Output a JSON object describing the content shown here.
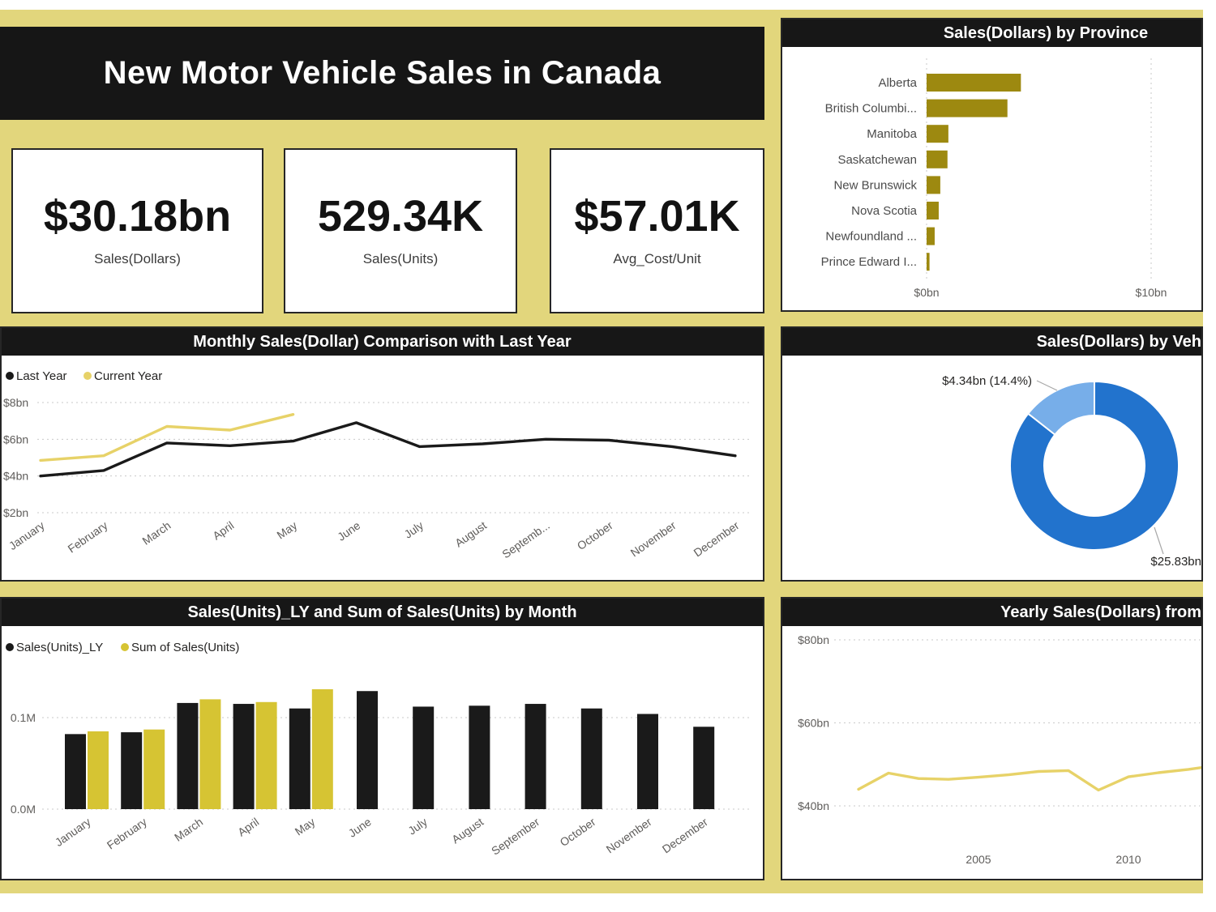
{
  "header": {
    "title": "New Motor Vehicle Sales in Canada"
  },
  "kpis": [
    {
      "value": "$30.18bn",
      "label": "Sales(Dollars)"
    },
    {
      "value": "529.34K",
      "label": "Sales(Units)"
    },
    {
      "value": "$57.01K",
      "label": "Avg_Cost/Unit"
    }
  ],
  "colors": {
    "background": "#e2d67c",
    "panel_border": "#262626",
    "title_bar": "#171717",
    "black_series": "#1a1a1a",
    "gold_line": "#e7d268",
    "gold_bar": "#d6c433",
    "olive_bar": "#9d8910",
    "donut_dark": "#2273cd",
    "donut_light": "#77aee9",
    "axis_text": "#5f5d5b",
    "cat_text": "#4b4b4b",
    "legend_text": "#252423",
    "grid": "#c9c9c9",
    "callout": "#a8a8a8"
  },
  "chart_data": [
    {
      "id": "province",
      "type": "hbar",
      "title": "Sales(Dollars) by Province",
      "categories": [
        "Alberta",
        "British Columbi...",
        "Manitoba",
        "Saskatchewan",
        "New Brunswick",
        "Nova Scotia",
        "Newfoundland ...",
        "Prince Edward I..."
      ],
      "values": [
        4.2,
        3.6,
        0.97,
        0.93,
        0.61,
        0.54,
        0.36,
        0.13
      ],
      "xlim": [
        0,
        10
      ],
      "x_ticks": [
        {
          "label": "$0bn",
          "value": 0
        },
        {
          "label": "$10bn",
          "value": 10
        }
      ],
      "bar_color_key": "olive_bar",
      "ylabel": "",
      "xlabel": ""
    },
    {
      "id": "monthly",
      "type": "line",
      "title": "Monthly Sales(Dollar) Comparison with Last Year",
      "categories": [
        "January",
        "February",
        "March",
        "April",
        "May",
        "June",
        "July",
        "August",
        "Septemb...",
        "October",
        "November",
        "December"
      ],
      "series": [
        {
          "name": "Last Year",
          "color_key": "black_series",
          "values": [
            4.0,
            4.3,
            5.8,
            5.65,
            5.9,
            6.9,
            5.6,
            5.75,
            6.0,
            5.95,
            5.6,
            5.1
          ]
        },
        {
          "name": "Current Year",
          "color_key": "gold_line",
          "values": [
            4.85,
            5.1,
            6.7,
            6.5,
            7.35,
            null,
            null,
            null,
            null,
            null,
            null,
            null
          ]
        }
      ],
      "ylim": [
        2,
        8
      ],
      "y_ticks": [
        {
          "label": "$8bn",
          "value": 8
        },
        {
          "label": "$6bn",
          "value": 6
        },
        {
          "label": "$4bn",
          "value": 4
        },
        {
          "label": "$2bn",
          "value": 2
        }
      ],
      "legend_position": "top-left",
      "grid": true
    },
    {
      "id": "vehicle",
      "type": "donut",
      "title": "Sales(Dollars) by Veh",
      "slices": [
        {
          "label": "$25.83bn",
          "value": 25.83,
          "color_key": "donut_dark"
        },
        {
          "label": "$4.34bn (14.4%)",
          "value": 4.34,
          "color_key": "donut_light"
        }
      ]
    },
    {
      "id": "units",
      "type": "grouped_bar",
      "title": "Sales(Units)_LY and Sum of Sales(Units) by Month",
      "categories": [
        "January",
        "February",
        "March",
        "April",
        "May",
        "June",
        "July",
        "August",
        "September",
        "October",
        "November",
        "December"
      ],
      "series": [
        {
          "name": "Sales(Units)_LY",
          "color_key": "black_series",
          "values": [
            0.082,
            0.084,
            0.116,
            0.115,
            0.11,
            0.129,
            0.112,
            0.113,
            0.115,
            0.11,
            0.104,
            0.09
          ]
        },
        {
          "name": "Sum of Sales(Units)",
          "color_key": "gold_bar",
          "values": [
            0.085,
            0.087,
            0.12,
            0.117,
            0.131,
            null,
            null,
            null,
            null,
            null,
            null,
            null
          ]
        }
      ],
      "ylim": [
        0,
        0.14
      ],
      "y_ticks": [
        {
          "label": "0.1M",
          "value": 0.1
        },
        {
          "label": "0.0M",
          "value": 0
        }
      ],
      "legend_position": "top-left",
      "grid": true
    },
    {
      "id": "yearly",
      "type": "line",
      "title": "Yearly Sales(Dollars) from",
      "x": [
        2001,
        2002,
        2003,
        2004,
        2005,
        2006,
        2007,
        2008,
        2009,
        2010,
        2011,
        2012,
        2013
      ],
      "series": [
        {
          "name": "Sales(Dollars)",
          "color_key": "gold_line",
          "values": [
            44.0,
            47.9,
            46.6,
            46.4,
            46.9,
            47.5,
            48.3,
            48.5,
            43.8,
            47.0,
            48.0,
            48.8,
            49.8
          ]
        }
      ],
      "ylim": [
        40,
        80
      ],
      "y_ticks": [
        {
          "label": "$80bn",
          "value": 80
        },
        {
          "label": "$60bn",
          "value": 60
        },
        {
          "label": "$40bn",
          "value": 40
        }
      ],
      "x_ticks": [
        {
          "label": "2005",
          "value": 2005
        },
        {
          "label": "2010",
          "value": 2010
        }
      ],
      "grid": true
    }
  ]
}
